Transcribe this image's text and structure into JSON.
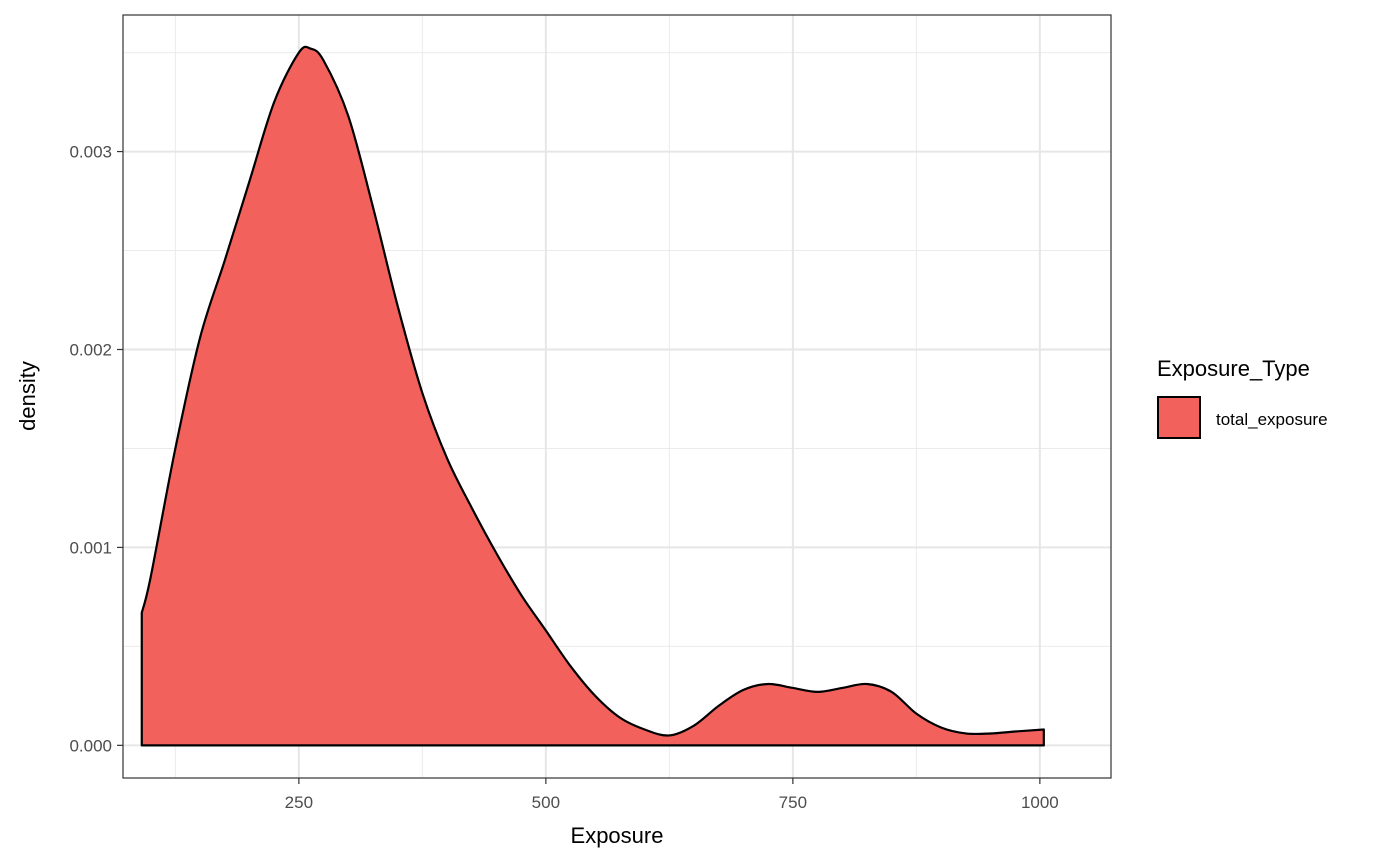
{
  "chart_data": {
    "type": "area",
    "subtype": "density",
    "title": "",
    "xlabel": "Exposure",
    "ylabel": "density",
    "xlim": [
      72,
      1072
    ],
    "ylim": [
      -0.000165,
      0.00369
    ],
    "x_ticks": [
      250,
      500,
      750,
      1000
    ],
    "x_tick_labels": [
      "250",
      "500",
      "750",
      "1000"
    ],
    "y_ticks": [
      0.0,
      0.001,
      0.002,
      0.003
    ],
    "y_tick_labels": [
      "0.000",
      "0.001",
      "0.002",
      "0.003"
    ],
    "grid": true,
    "legend": {
      "title": "Exposure_Type",
      "position": "right",
      "entries": [
        {
          "label": "total_exposure",
          "color": "#F2615C"
        }
      ]
    },
    "series": [
      {
        "name": "total_exposure",
        "color": "#F2615C",
        "stroke": "#000000",
        "x": [
          91,
          100,
          125,
          150,
          175,
          200,
          225,
          250,
          262,
          275,
          300,
          325,
          350,
          375,
          400,
          425,
          450,
          475,
          500,
          525,
          550,
          575,
          600,
          625,
          650,
          675,
          700,
          725,
          750,
          775,
          800,
          825,
          850,
          875,
          900,
          925,
          950,
          975,
          1004
        ],
        "y": [
          0.00067,
          0.00085,
          0.0015,
          0.00206,
          0.00245,
          0.00285,
          0.00325,
          0.0035,
          0.00352,
          0.00346,
          0.00318,
          0.00272,
          0.00222,
          0.00178,
          0.00145,
          0.0012,
          0.00097,
          0.00076,
          0.00058,
          0.0004,
          0.00025,
          0.00014,
          8e-05,
          5e-05,
          0.0001,
          0.0002,
          0.00028,
          0.00031,
          0.00029,
          0.00027,
          0.00029,
          0.00031,
          0.00027,
          0.00016,
          9e-05,
          6e-05,
          6e-05,
          7e-05,
          8e-05
        ]
      }
    ]
  }
}
